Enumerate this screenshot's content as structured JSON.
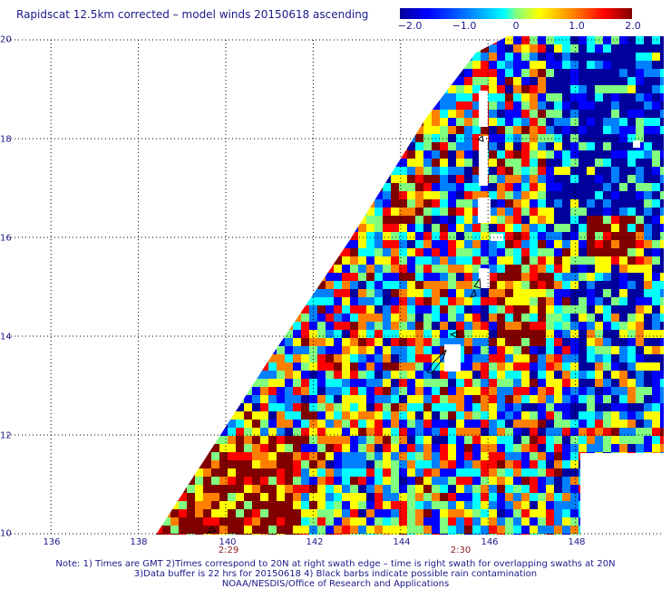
{
  "title": "Rapidscat 12.5km corrected – model winds 20150618 ascending",
  "colorbar": {
    "labels": [
      "−2.0",
      "−1.0",
      "0",
      "1.0",
      "2.0"
    ],
    "colors": [
      "#00009c",
      "#0000ff",
      "#0080ff",
      "#00ffff",
      "#80ff80",
      "#ffff00",
      "#ff8000",
      "#ff0000",
      "#800000"
    ]
  },
  "axes": {
    "x_ticks": [
      "136",
      "138",
      "140",
      "142",
      "144",
      "146",
      "148"
    ],
    "y_ticks": [
      "10",
      "12",
      "14",
      "16",
      "18",
      "20"
    ],
    "lon_range": [
      135,
      150
    ],
    "lat_range": [
      10,
      20
    ]
  },
  "pass_times": [
    "2:29",
    "2:30"
  ],
  "notes": [
    "Note: 1) Times are GMT 2)Times correspond to 20N at right swath edge – time is right swath for overlapping swaths at 20N",
    "3)Data buffer is 22 hrs for 20150618 4) Black barbs indicate possible rain contamination",
    "NOAA/NESDIS/Office of Research and Applications"
  ],
  "palette": {
    "text": "#1a1a8a",
    "time_text": "#8a1a1a",
    "grid": "#000000",
    "land_outline": "#000000"
  }
}
